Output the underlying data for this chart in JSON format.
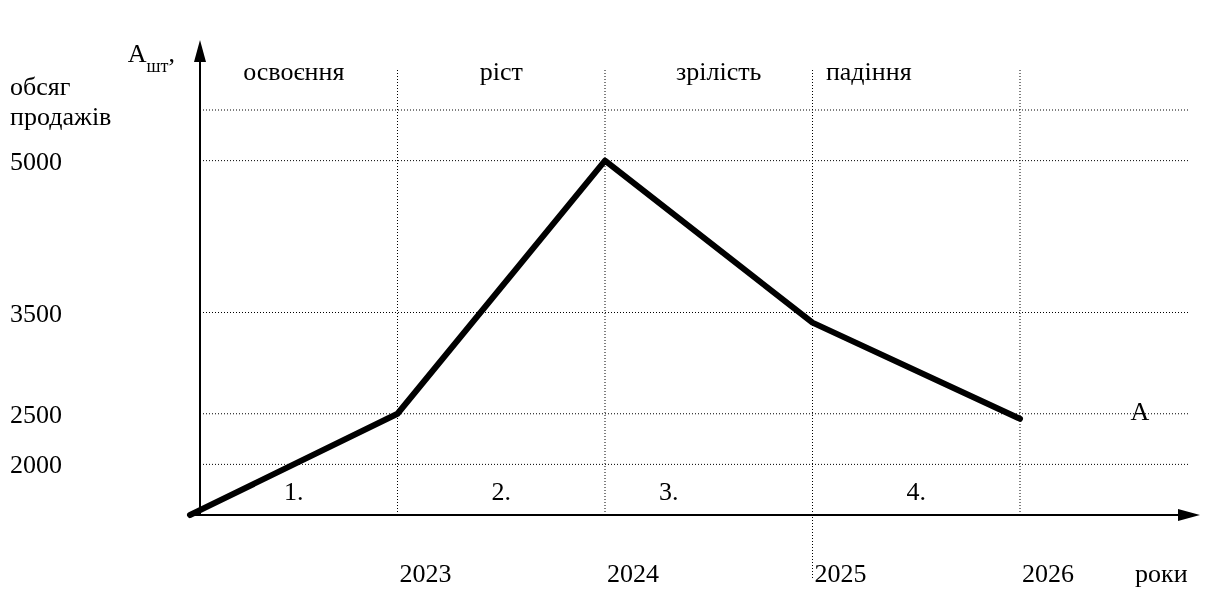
{
  "chart_data": {
    "type": "line",
    "ylabel": "A$_{шт}$, обсяг продажів",
    "xlabel": "роки",
    "categories": [
      null,
      "2023",
      "2024",
      "2025",
      "2026"
    ],
    "series": [
      {
        "color": "#000000",
        "values": [
          1500,
          2500,
          5000,
          3400,
          2450
        ]
      }
    ],
    "ylim": [
      1500,
      5500
    ],
    "yticks": [
      2000,
      2500,
      3500,
      5000,
      {
        "value": 5500,
        "label": null
      }
    ],
    "grid": true,
    "line_style": "solid",
    "marker": "none",
    "annotations": [
      "освоєння",
      "ріст",
      "зрілість",
      "падіння",
      "1.",
      "2.",
      "3.",
      "4.",
      "A"
    ]
  }
}
